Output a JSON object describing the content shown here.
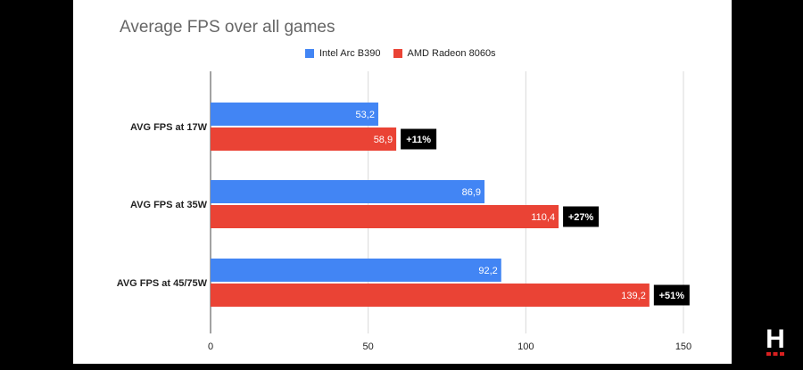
{
  "chart_data": {
    "type": "bar",
    "orientation": "horizontal",
    "title": "Average FPS over all games",
    "categories": [
      "AVG FPS at 17W",
      "AVG FPS at 35W",
      "AVG FPS at 45/75W"
    ],
    "series": [
      {
        "name": "Intel Arc B390",
        "color": "#4285f4",
        "values": [
          53.2,
          86.9,
          92.2
        ],
        "labels": [
          "53,2",
          "86,9",
          "92,2"
        ]
      },
      {
        "name": "AMD Radeon 8060s",
        "color": "#ea4335",
        "values": [
          58.9,
          110.4,
          139.2
        ],
        "labels": [
          "58,9",
          "110,4",
          "139,2"
        ],
        "annotations": [
          "+11%",
          "+27%",
          "+51%"
        ]
      }
    ],
    "x_ticks": [
      "0",
      "50",
      "100",
      "150"
    ],
    "xlim": [
      0,
      150
    ],
    "grid": true,
    "legend_position": "top-center"
  },
  "brand": {
    "logo_letter": "H",
    "logo_accent": "#d82020"
  }
}
